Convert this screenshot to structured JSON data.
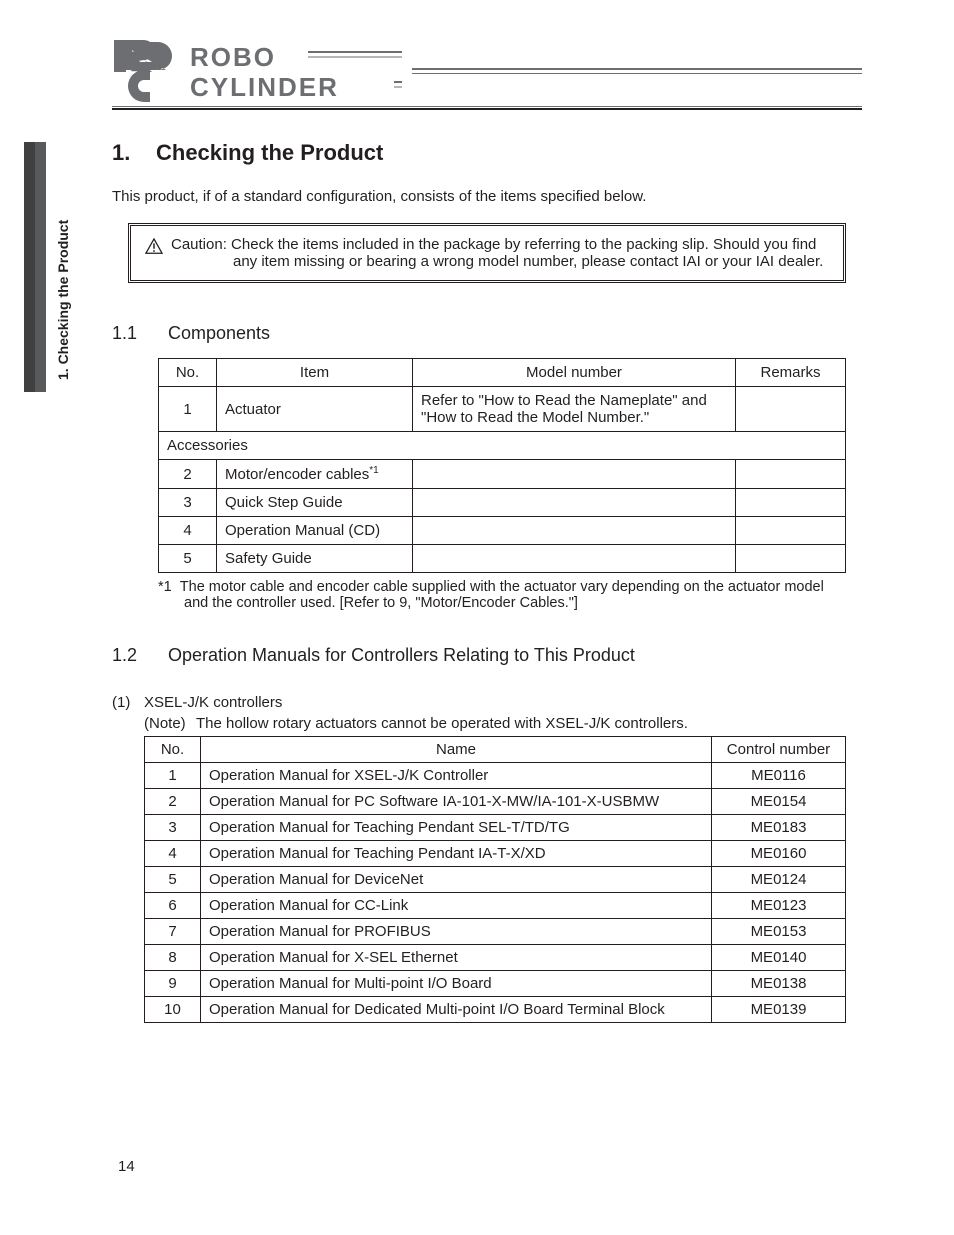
{
  "sideLabel": "1. Checking the Product",
  "logo": {
    "line1": "ROBO",
    "line2": "CYLINDER"
  },
  "section": {
    "num": "1.",
    "title": "Checking the Product"
  },
  "intro": "This product, if of a standard configuration, consists of the items specified below.",
  "caution": {
    "label": "Caution:",
    "line1": "Check the items included in the package by referring to the packing slip. Should you find",
    "line2": "any item missing or bearing a wrong model number, please contact IAI or your IAI dealer."
  },
  "sub11": {
    "num": "1.1",
    "title": "Components"
  },
  "compTable": {
    "headers": {
      "no": "No.",
      "item": "Item",
      "model": "Model number",
      "remarks": "Remarks"
    },
    "row1": {
      "no": "1",
      "item": "Actuator",
      "model": "Refer to \"How to Read the Nameplate\" and \"How to Read the Model Number.\"",
      "remarks": ""
    },
    "accessories": "Accessories",
    "row2": {
      "no": "2",
      "item": "Motor/encoder cables",
      "sup": "*1",
      "model": "",
      "remarks": ""
    },
    "row3": {
      "no": "3",
      "item": "Quick Step Guide",
      "model": "",
      "remarks": ""
    },
    "row4": {
      "no": "4",
      "item": "Operation Manual (CD)",
      "model": "",
      "remarks": ""
    },
    "row5": {
      "no": "5",
      "item": "Safety Guide",
      "model": "",
      "remarks": ""
    }
  },
  "footnote": {
    "mark": "*1",
    "text": "The motor cable and encoder cable supplied with the actuator vary depending on the actuator model and the controller used. [Refer to 9, \"Motor/Encoder Cables.\"]"
  },
  "sub12": {
    "num": "1.2",
    "title": "Operation Manuals for Controllers Relating to This Product"
  },
  "subsub1": {
    "pnum": "(1)",
    "title": "XSEL-J/K controllers"
  },
  "note": {
    "label": "(Note)",
    "text": "The hollow rotary actuators cannot be operated with XSEL-J/K controllers."
  },
  "manualsTable": {
    "headers": {
      "no": "No.",
      "name": "Name",
      "ctrl": "Control number"
    },
    "rows": [
      {
        "no": "1",
        "name": "Operation Manual for XSEL-J/K Controller",
        "ctrl": "ME0116"
      },
      {
        "no": "2",
        "name": "Operation Manual for PC Software IA-101-X-MW/IA-101-X-USBMW",
        "ctrl": "ME0154"
      },
      {
        "no": "3",
        "name": "Operation Manual for Teaching Pendant SEL-T/TD/TG",
        "ctrl": "ME0183"
      },
      {
        "no": "4",
        "name": "Operation Manual for Teaching Pendant IA-T-X/XD",
        "ctrl": "ME0160"
      },
      {
        "no": "5",
        "name": "Operation Manual for DeviceNet",
        "ctrl": "ME0124"
      },
      {
        "no": "6",
        "name": "Operation Manual for CC-Link",
        "ctrl": "ME0123"
      },
      {
        "no": "7",
        "name": "Operation Manual for PROFIBUS",
        "ctrl": "ME0153"
      },
      {
        "no": "8",
        "name": "Operation Manual for X-SEL Ethernet",
        "ctrl": "ME0140"
      },
      {
        "no": "9",
        "name": "Operation Manual for Multi-point I/O Board",
        "ctrl": "ME0138"
      },
      {
        "no": "10",
        "name": "Operation Manual for Dedicated Multi-point I/O Board Terminal Block",
        "ctrl": "ME0139"
      }
    ]
  },
  "pageNumber": "14"
}
